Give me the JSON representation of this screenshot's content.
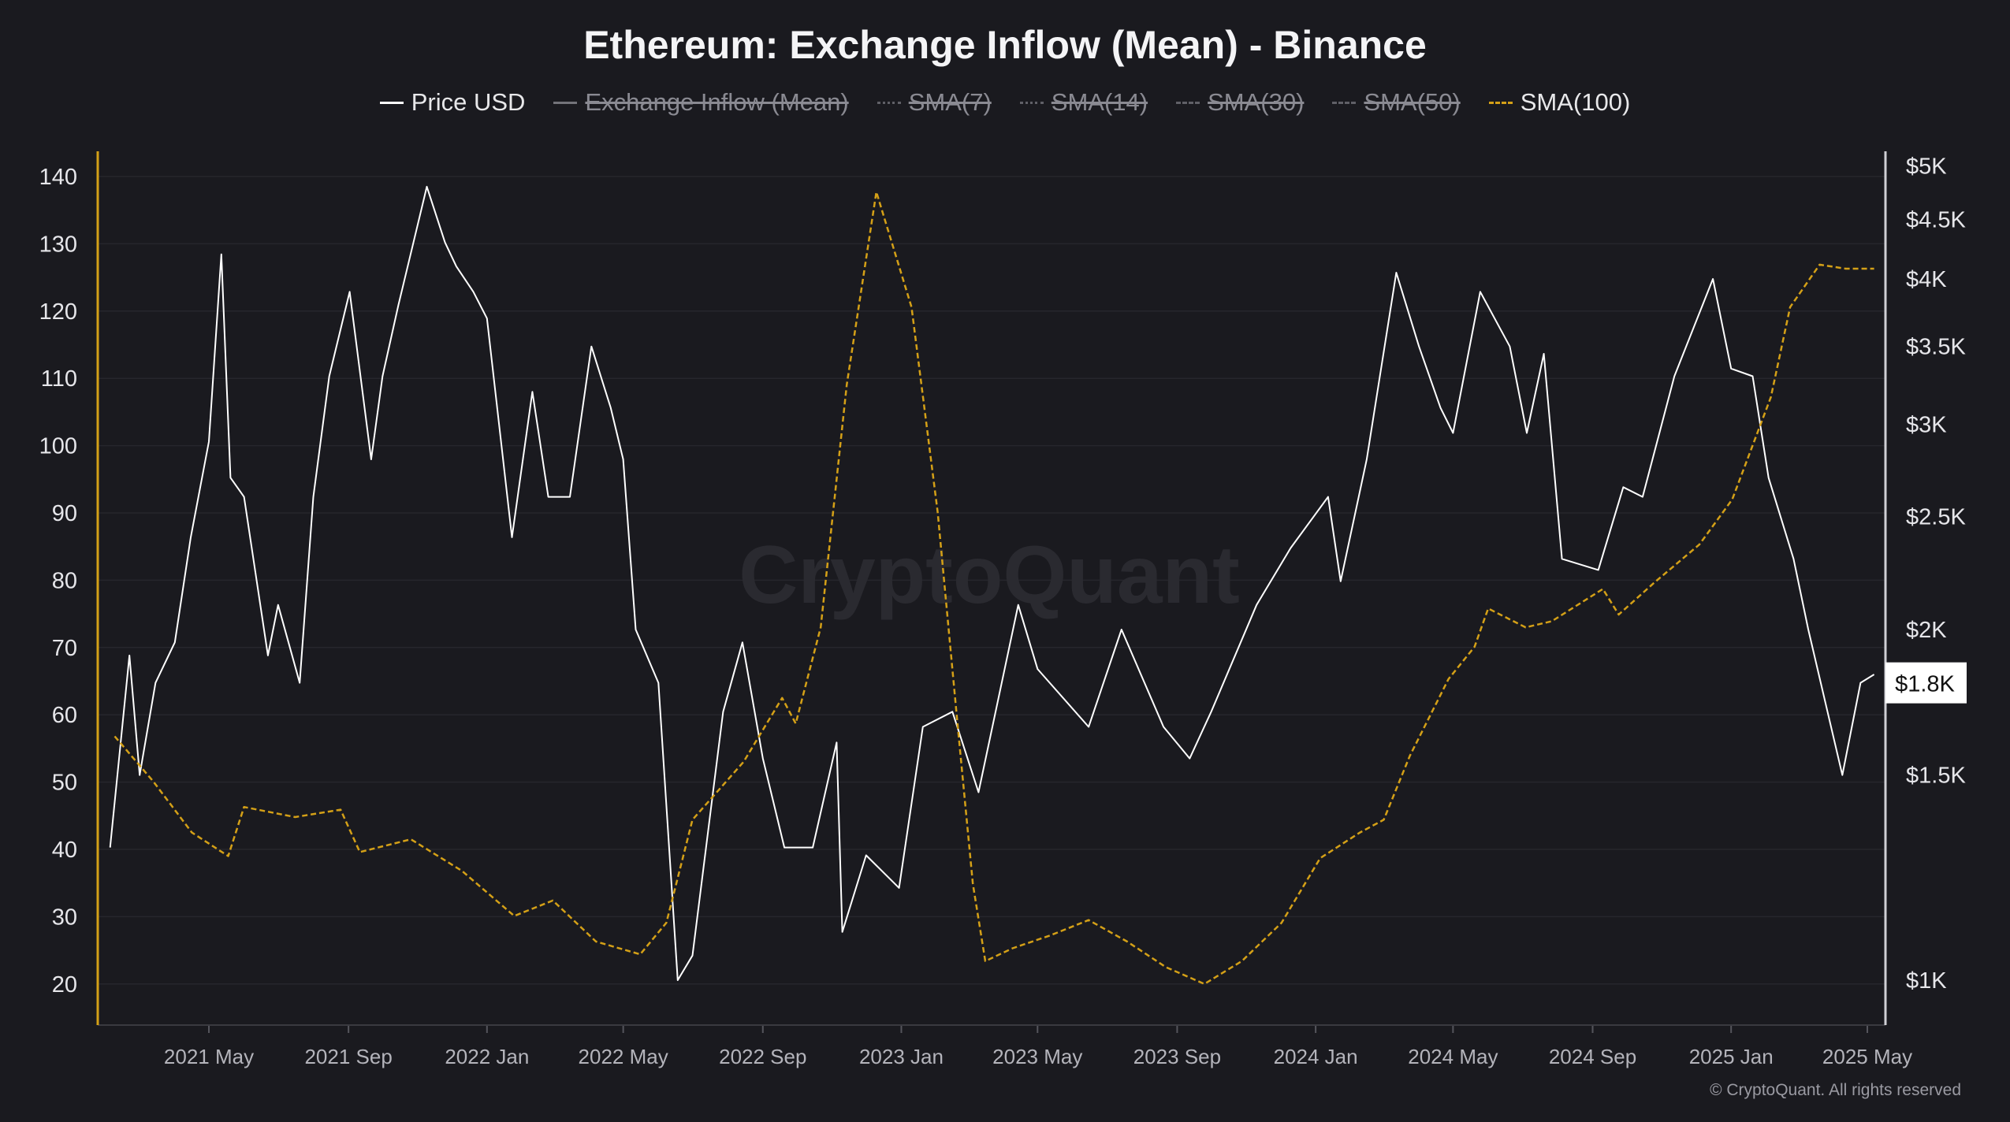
{
  "chart_data": {
    "type": "line",
    "title": "Ethereum: Exchange Inflow (Mean) - Binance",
    "legend": [
      {
        "name": "Price USD",
        "color": "#ffffff",
        "style": "solid",
        "hidden": false
      },
      {
        "name": "Exchange Inflow (Mean)",
        "color": "#bdbdc4",
        "style": "solid",
        "hidden": true
      },
      {
        "name": "SMA(7)",
        "color": "#9a9aa2",
        "style": "dotted",
        "hidden": true
      },
      {
        "name": "SMA(14)",
        "color": "#9a9aa2",
        "style": "dotted",
        "hidden": true
      },
      {
        "name": "SMA(30)",
        "color": "#9a9aa2",
        "style": "dashed",
        "hidden": true
      },
      {
        "name": "SMA(50)",
        "color": "#9a9aa2",
        "style": "dashed",
        "hidden": true
      },
      {
        "name": "SMA(100)",
        "color": "#d4a017",
        "style": "dashed",
        "hidden": false
      }
    ],
    "legend_position": "top-center",
    "x_axis": {
      "type": "date",
      "range": [
        "2021-02-03",
        "2025-05-07"
      ],
      "ticks": [
        "2021-05-01",
        "2021-09-01",
        "2022-01-01",
        "2022-05-01",
        "2022-09-01",
        "2023-01-01",
        "2023-05-01",
        "2023-09-01",
        "2024-01-01",
        "2024-05-01",
        "2024-09-01",
        "2025-01-01",
        "2025-05-01"
      ],
      "tick_labels": [
        "2021 May",
        "2021 Sep",
        "2022 Jan",
        "2022 May",
        "2022 Sep",
        "2023 Jan",
        "2023 May",
        "2023 Sep",
        "2024 Jan",
        "2024 May",
        "2024 Sep",
        "2025 Jan",
        "2025 May"
      ]
    },
    "y_left": {
      "range": [
        14,
        147
      ],
      "ticks": [
        140,
        130,
        120,
        110,
        100,
        90,
        80,
        70,
        60,
        50,
        40,
        30,
        20
      ],
      "tick_labels": [
        "140",
        "130",
        "120",
        "110",
        "100",
        "90",
        "80",
        "70",
        "60",
        "50",
        "40",
        "30",
        "20"
      ],
      "color": "#d4a017"
    },
    "y_right": {
      "scale": "log",
      "range": [
        900,
        5200
      ],
      "ticks": [
        5000,
        4500,
        4000,
        3500,
        3000,
        2500,
        2000,
        1500,
        1000
      ],
      "tick_labels": [
        "$5K",
        "$4.5K",
        "$4K",
        "$3.5K",
        "$3K",
        "$2.5K",
        "$2K",
        "$1.5K",
        "$1K"
      ],
      "current_value": 1800,
      "current_label": "$1.8K"
    },
    "grid": true,
    "series": [
      {
        "name": "Price USD",
        "axis": "right",
        "color": "#ffffff",
        "x": [
          "2021-02-03",
          "2021-02-20",
          "2021-03-01",
          "2021-03-15",
          "2021-04-01",
          "2021-04-15",
          "2021-05-01",
          "2021-05-12",
          "2021-05-20",
          "2021-06-01",
          "2021-06-22",
          "2021-07-01",
          "2021-07-20",
          "2021-08-01",
          "2021-08-15",
          "2021-09-02",
          "2021-09-21",
          "2021-10-01",
          "2021-10-15",
          "2021-11-09",
          "2021-11-25",
          "2021-12-05",
          "2021-12-20",
          "2022-01-01",
          "2022-01-23",
          "2022-02-10",
          "2022-02-24",
          "2022-03-15",
          "2022-04-03",
          "2022-04-20",
          "2022-05-01",
          "2022-05-12",
          "2022-06-01",
          "2022-06-18",
          "2022-07-01",
          "2022-07-28",
          "2022-08-14",
          "2022-09-01",
          "2022-09-20",
          "2022-10-15",
          "2022-11-05",
          "2022-11-10",
          "2022-12-01",
          "2022-12-30",
          "2023-01-20",
          "2023-02-15",
          "2023-03-10",
          "2023-04-14",
          "2023-05-01",
          "2023-06-15",
          "2023-07-14",
          "2023-08-20",
          "2023-09-12",
          "2023-10-01",
          "2023-11-10",
          "2023-12-10",
          "2024-01-12",
          "2024-01-23",
          "2024-02-15",
          "2024-03-12",
          "2024-04-01",
          "2024-04-20",
          "2024-05-01",
          "2024-05-25",
          "2024-06-20",
          "2024-07-05",
          "2024-07-20",
          "2024-08-05",
          "2024-09-06",
          "2024-09-28",
          "2024-10-15",
          "2024-11-12",
          "2024-12-16",
          "2025-01-01",
          "2025-01-20",
          "2025-02-03",
          "2025-02-25",
          "2025-03-10",
          "2025-04-09",
          "2025-04-25",
          "2025-05-07"
        ],
        "y": [
          1300,
          1900,
          1500,
          1800,
          1950,
          2400,
          2900,
          4200,
          2700,
          2600,
          1900,
          2100,
          1800,
          2600,
          3300,
          3900,
          2800,
          3300,
          3800,
          4800,
          4300,
          4100,
          3900,
          3700,
          2400,
          3200,
          2600,
          2600,
          3500,
          3100,
          2800,
          2000,
          1800,
          1000,
          1050,
          1700,
          1950,
          1550,
          1300,
          1300,
          1600,
          1100,
          1280,
          1200,
          1650,
          1700,
          1450,
          2100,
          1850,
          1650,
          2000,
          1650,
          1550,
          1700,
          2100,
          2350,
          2600,
          2200,
          2800,
          4050,
          3500,
          3100,
          2950,
          3900,
          3500,
          2950,
          3450,
          2300,
          2250,
          2650,
          2600,
          3300,
          4000,
          3350,
          3300,
          2700,
          2300,
          2000,
          1500,
          1800,
          1830
        ]
      },
      {
        "name": "SMA(100)",
        "axis": "left",
        "color": "#d4a017",
        "x": [
          "2021-02-07",
          "2021-03-13",
          "2021-04-16",
          "2021-05-18",
          "2021-06-01",
          "2021-07-16",
          "2021-08-25",
          "2021-09-11",
          "2021-10-26",
          "2021-12-10",
          "2022-01-25",
          "2022-02-28",
          "2022-04-07",
          "2022-05-16",
          "2022-06-08",
          "2022-07-01",
          "2022-08-15",
          "2022-09-18",
          "2022-09-30",
          "2022-10-22",
          "2022-11-14",
          "2022-12-10",
          "2023-01-10",
          "2023-02-02",
          "2023-02-19",
          "2023-03-05",
          "2023-03-16",
          "2023-04-09",
          "2023-05-12",
          "2023-06-15",
          "2023-07-19",
          "2023-08-22",
          "2023-09-25",
          "2023-10-28",
          "2023-12-02",
          "2024-01-05",
          "2024-02-09",
          "2024-03-01",
          "2024-03-24",
          "2024-04-27",
          "2024-05-20",
          "2024-06-01",
          "2024-07-04",
          "2024-07-27",
          "2024-09-10",
          "2024-09-24",
          "2024-10-25",
          "2024-12-04",
          "2025-01-02",
          "2025-02-05",
          "2025-02-22",
          "2025-03-20",
          "2025-04-12",
          "2025-04-29",
          "2025-05-07"
        ],
        "y": [
          56.8,
          50.1,
          42.5,
          39,
          46.3,
          44.8,
          45.9,
          39.6,
          41.5,
          36.8,
          30.1,
          32.4,
          26.3,
          24.4,
          29.1,
          44.4,
          53,
          62.5,
          58.7,
          73,
          109.1,
          137.7,
          120.6,
          90.1,
          59.6,
          34.9,
          23.4,
          25.3,
          27.2,
          29.5,
          26.3,
          22.5,
          20,
          23.4,
          29.1,
          38.7,
          42.5,
          44.4,
          53.9,
          65.3,
          70.1,
          75.8,
          73,
          73.9,
          78.7,
          74.9,
          79.6,
          85.3,
          92,
          107.2,
          120.6,
          126.9,
          126.3,
          126.3,
          126.3
        ]
      }
    ],
    "watermark": "CryptoQuant",
    "copyright": "© CryptoQuant. All rights reserved"
  }
}
